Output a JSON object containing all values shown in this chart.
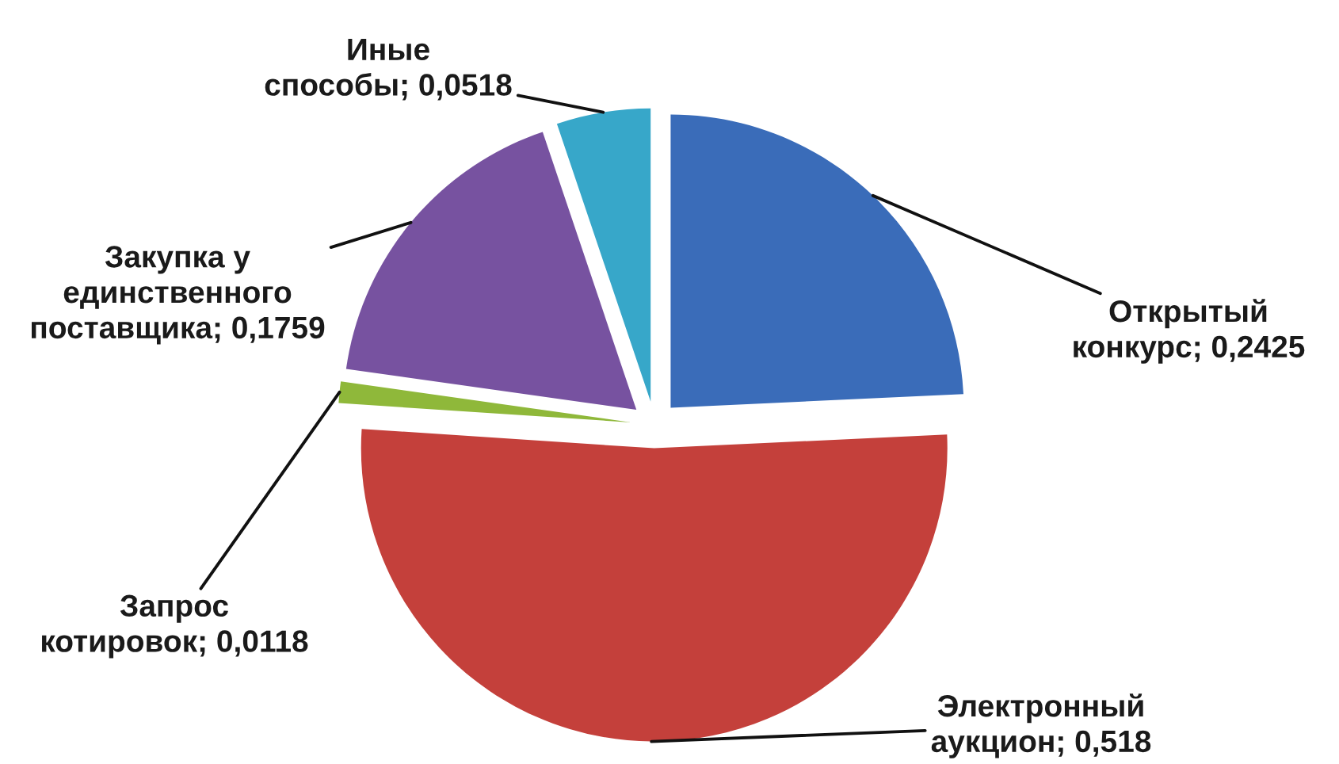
{
  "chart_data": {
    "type": "pie",
    "categories": [
      "Открытый конкурс",
      "Электронный аукцион",
      "Запрос котировок",
      "Закупка у единственного поставщика",
      "Иные способы"
    ],
    "values": [
      0.2425,
      0.518,
      0.0118,
      0.1759,
      0.0518
    ],
    "value_labels": [
      "0,2425",
      "0,518",
      "0,0118",
      "0,1759",
      "0,0518"
    ],
    "colors": [
      "#3a6cb9",
      "#c4403b",
      "#8fb83a",
      "#7752a0",
      "#37a7c9"
    ]
  }
}
